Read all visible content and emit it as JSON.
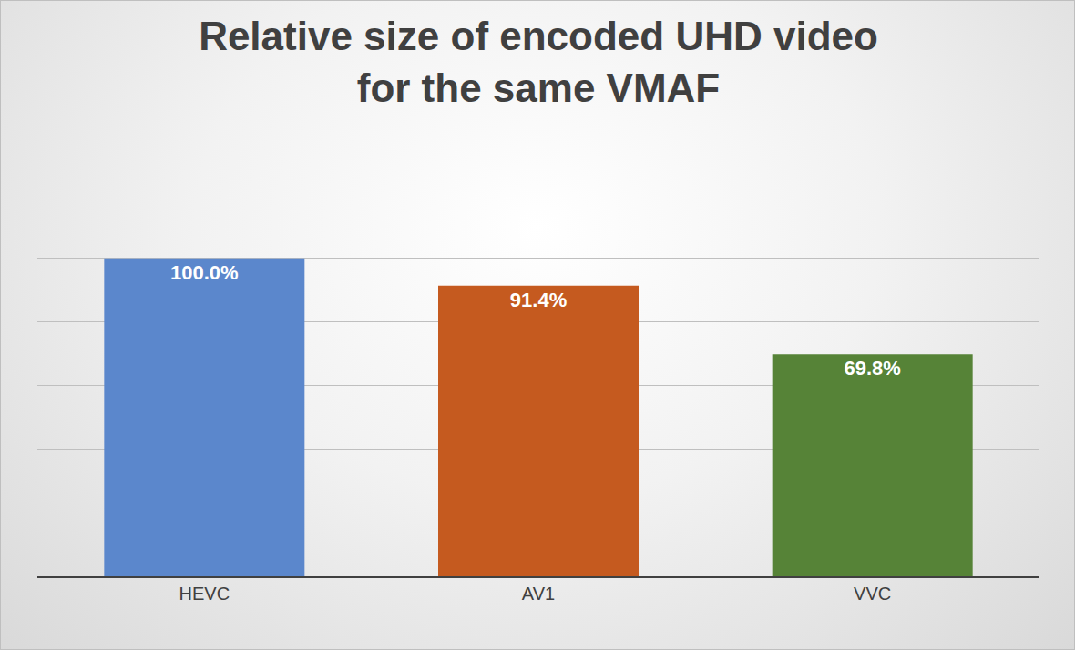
{
  "chart_data": {
    "type": "bar",
    "title": "Relative size of encoded UHD video\nfor the same VMAF",
    "categories": [
      "HEVC",
      "AV1",
      "VVC"
    ],
    "values": [
      100.0,
      91.4,
      69.8
    ],
    "value_labels": [
      "100.0%",
      "91.4%",
      "69.8%"
    ],
    "colors": [
      "#5b87cc",
      "#c55a1f",
      "#568337"
    ],
    "ylim": [
      0,
      120
    ],
    "yticks": [
      0,
      20,
      40,
      60,
      80,
      100,
      120
    ],
    "grid": true,
    "data_labels": true,
    "tick_labels": "x"
  }
}
